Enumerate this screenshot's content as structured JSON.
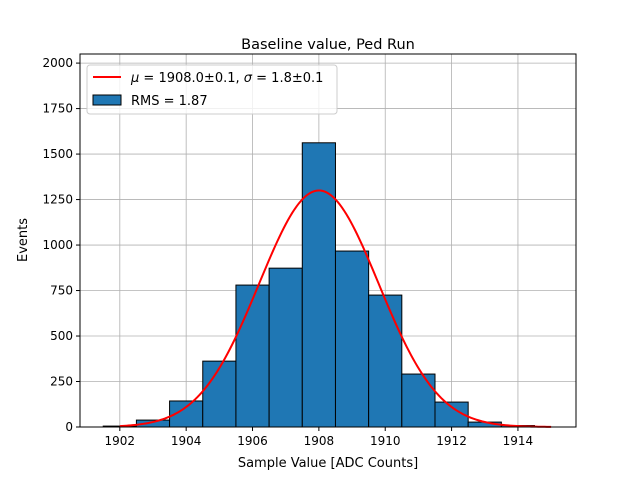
{
  "chart_data": {
    "type": "bar",
    "title": "Baseline value, Ped Run",
    "xlabel": "Sample Value [ADC Counts]",
    "ylabel": "Events",
    "xlim": [
      1900.8,
      1915.75
    ],
    "ylim": [
      0,
      2050
    ],
    "xticks": [
      1902,
      1904,
      1906,
      1908,
      1910,
      1912,
      1914
    ],
    "yticks": [
      0,
      250,
      500,
      750,
      1000,
      1250,
      1500,
      1750,
      2000
    ],
    "grid": true,
    "bin_width": 1,
    "bin_centers": [
      1902,
      1903,
      1904,
      1905,
      1906,
      1907,
      1908,
      1909,
      1910,
      1911,
      1912,
      1913,
      1914
    ],
    "values": [
      5,
      38,
      143,
      362,
      780,
      873,
      1562,
      967,
      725,
      291,
      137,
      27,
      8
    ],
    "fit": {
      "type": "gaussian",
      "amplitude": 1300,
      "mu": 1908.0,
      "sigma": 1.8,
      "range": [
        1902,
        1915
      ]
    },
    "legend_position": "top-left",
    "legend": [
      "$\\mu = 1908.0\\pm0.1$, $\\sigma = 1.8\\pm0.1$",
      "RMS = 1.87"
    ],
    "legend_parts": {
      "fit_mu": "μ",
      "fit_mu_val": " = 1908.0±0.1, ",
      "fit_sigma": "σ",
      "fit_sigma_val": " = 1.8±0.1",
      "hist": "RMS = 1.87"
    },
    "colors": {
      "bar": "#1f77b4",
      "fit": "#ff0000",
      "grid": "#b0b0b0"
    }
  }
}
